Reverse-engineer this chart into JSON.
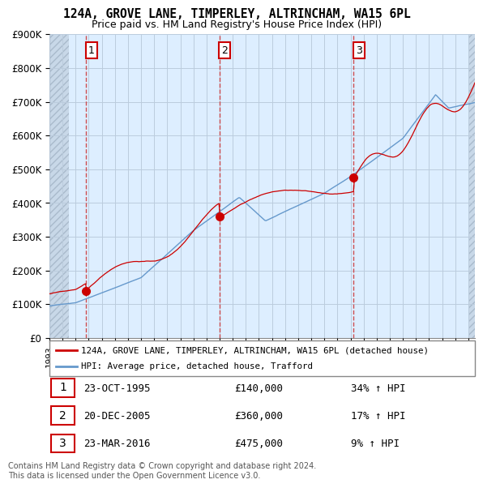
{
  "title": "124A, GROVE LANE, TIMPERLEY, ALTRINCHAM, WA15 6PL",
  "subtitle": "Price paid vs. HM Land Registry's House Price Index (HPI)",
  "sale_dates_num": [
    1995.81,
    2005.97,
    2016.23
  ],
  "sale_prices": [
    140000,
    360000,
    475000
  ],
  "sale_labels": [
    "1",
    "2",
    "3"
  ],
  "sale_color": "#cc0000",
  "hpi_color": "#6699cc",
  "vline_color": "#cc3333",
  "bg_color": "#ddeeff",
  "hatch_color": "#bbccdd",
  "grid_color": "#aabbcc",
  "ylim": [
    0,
    900000
  ],
  "xlim_start": 1993.0,
  "xlim_end": 2025.5,
  "ytick_labels": [
    "£0",
    "£100K",
    "£200K",
    "£300K",
    "£400K",
    "£500K",
    "£600K",
    "£700K",
    "£800K",
    "£900K"
  ],
  "ytick_values": [
    0,
    100000,
    200000,
    300000,
    400000,
    500000,
    600000,
    700000,
    800000,
    900000
  ],
  "legend_line1": "124A, GROVE LANE, TIMPERLEY, ALTRINCHAM, WA15 6PL (detached house)",
  "legend_line2": "HPI: Average price, detached house, Trafford",
  "table_data": [
    [
      "1",
      "23-OCT-1995",
      "£140,000",
      "34% ↑ HPI"
    ],
    [
      "2",
      "20-DEC-2005",
      "£360,000",
      "17% ↑ HPI"
    ],
    [
      "3",
      "23-MAR-2016",
      "£475,000",
      "9% ↑ HPI"
    ]
  ],
  "footnote": "Contains HM Land Registry data © Crown copyright and database right 2024.\nThis data is licensed under the Open Government Licence v3.0."
}
